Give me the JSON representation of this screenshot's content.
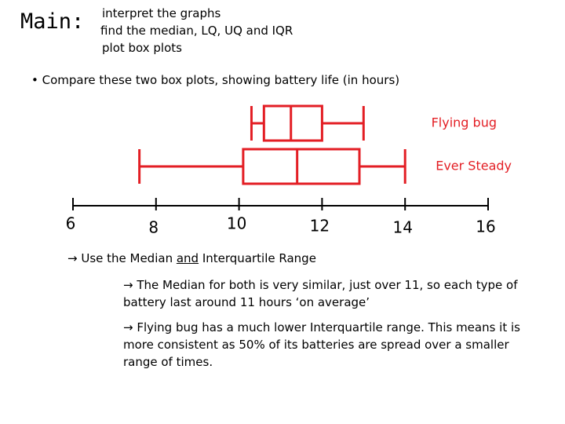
{
  "header": {
    "label": "Main:",
    "items": [
      "interpret the graphs",
      "find the median, LQ, UQ and IQR",
      "plot box plots"
    ]
  },
  "question": "• Compare these two box plots, showing battery life (in hours)",
  "chart_data": {
    "type": "boxplot",
    "series": [
      {
        "name": "Flying bug",
        "color": "#e31e24",
        "min": 10.3,
        "q1": 10.6,
        "median": 11.25,
        "q3": 12.0,
        "max": 13.0
      },
      {
        "name": "Ever Steady",
        "color": "#e31e24",
        "min": 7.6,
        "q1": 10.1,
        "median": 11.4,
        "q3": 12.9,
        "max": 14.0
      }
    ],
    "xlim": [
      6,
      16
    ],
    "xticks": [
      6,
      8,
      10,
      12,
      14,
      16
    ]
  },
  "point": {
    "before": "→ Use the Median ",
    "underlined": "and",
    "after": " Interquartile Range"
  },
  "notes": [
    "→ The Median for both is very similar, just over 11, so each type of battery last around 11 hours ‘on average’",
    "→ Flying bug has a much lower Interquartile range. This means it is more consistent as 50% of its batteries are spread over a smaller range of times."
  ]
}
